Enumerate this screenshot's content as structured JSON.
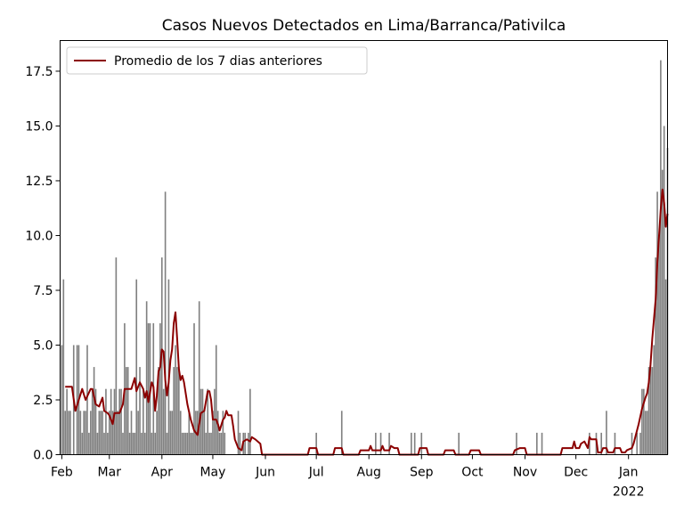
{
  "chart_data": {
    "type": "bar",
    "title": "Casos Nuevos Detectados en Lima/Barranca/Pativilca",
    "xlabel": "",
    "ylabel": "",
    "ylim": [
      0,
      18.9
    ],
    "yticks": [
      "0.0",
      "2.5",
      "5.0",
      "7.5",
      "10.0",
      "12.5",
      "15.0",
      "17.5"
    ],
    "xticks": [
      {
        "label": "Feb",
        "day": 0
      },
      {
        "label": "Mar",
        "day": 28
      },
      {
        "label": "Apr",
        "day": 59
      },
      {
        "label": "May",
        "day": 89
      },
      {
        "label": "Jun",
        "day": 120
      },
      {
        "label": "Jul",
        "day": 150
      },
      {
        "label": "Aug",
        "day": 181
      },
      {
        "label": "Sep",
        "day": 212
      },
      {
        "label": "Oct",
        "day": 242
      },
      {
        "label": "Nov",
        "day": 273
      },
      {
        "label": "Dec",
        "day": 303
      },
      {
        "label": "Jan",
        "day": 334
      }
    ],
    "year_label": "2022",
    "x_start": "2021-02-01",
    "x_range_days": [
      -1,
      357
    ],
    "bar_color": "#808080",
    "line_color": "#8b0000",
    "legend": {
      "placement": "top-left",
      "entries": [
        "Promedio de los 7 dias anteriores"
      ]
    },
    "series": [
      {
        "name": "Casos",
        "kind": "bar",
        "points": [
          [
            0,
            5
          ],
          [
            1,
            8
          ],
          [
            2,
            2
          ],
          [
            3,
            3
          ],
          [
            4,
            2
          ],
          [
            5,
            2
          ],
          [
            7,
            5
          ],
          [
            9,
            5
          ],
          [
            10,
            5
          ],
          [
            11,
            2
          ],
          [
            12,
            1
          ],
          [
            13,
            2
          ],
          [
            14,
            2
          ],
          [
            15,
            5
          ],
          [
            16,
            1
          ],
          [
            17,
            2
          ],
          [
            18,
            3
          ],
          [
            19,
            4
          ],
          [
            20,
            3
          ],
          [
            21,
            1
          ],
          [
            22,
            2
          ],
          [
            23,
            2
          ],
          [
            24,
            2
          ],
          [
            25,
            1
          ],
          [
            26,
            3
          ],
          [
            27,
            1
          ],
          [
            28,
            2
          ],
          [
            29,
            3
          ],
          [
            30,
            2
          ],
          [
            31,
            3
          ],
          [
            32,
            9
          ],
          [
            33,
            2
          ],
          [
            34,
            3
          ],
          [
            35,
            3
          ],
          [
            36,
            1
          ],
          [
            37,
            6
          ],
          [
            38,
            4
          ],
          [
            39,
            4
          ],
          [
            40,
            1
          ],
          [
            41,
            2
          ],
          [
            42,
            1
          ],
          [
            43,
            1
          ],
          [
            44,
            8
          ],
          [
            45,
            2
          ],
          [
            46,
            4
          ],
          [
            47,
            1
          ],
          [
            48,
            3
          ],
          [
            49,
            1
          ],
          [
            50,
            7
          ],
          [
            51,
            6
          ],
          [
            52,
            6
          ],
          [
            53,
            1
          ],
          [
            54,
            6
          ],
          [
            55,
            1
          ],
          [
            56,
            2
          ],
          [
            57,
            4
          ],
          [
            58,
            6
          ],
          [
            59,
            9
          ],
          [
            60,
            3
          ],
          [
            61,
            12
          ],
          [
            62,
            1
          ],
          [
            63,
            8
          ],
          [
            64,
            2
          ],
          [
            65,
            2
          ],
          [
            66,
            4
          ],
          [
            67,
            5
          ],
          [
            68,
            4
          ],
          [
            69,
            4
          ],
          [
            70,
            2
          ],
          [
            71,
            1
          ],
          [
            72,
            1
          ],
          [
            73,
            1
          ],
          [
            74,
            1
          ],
          [
            75,
            2
          ],
          [
            76,
            1
          ],
          [
            77,
            1
          ],
          [
            78,
            6
          ],
          [
            79,
            2
          ],
          [
            80,
            2
          ],
          [
            81,
            7
          ],
          [
            82,
            3
          ],
          [
            83,
            3
          ],
          [
            84,
            2
          ],
          [
            85,
            1
          ],
          [
            86,
            3
          ],
          [
            87,
            1
          ],
          [
            88,
            1
          ],
          [
            89,
            2
          ],
          [
            90,
            3
          ],
          [
            91,
            5
          ],
          [
            92,
            2
          ],
          [
            93,
            1
          ],
          [
            94,
            1
          ],
          [
            95,
            2
          ],
          [
            96,
            1
          ],
          [
            104,
            2
          ],
          [
            105,
            1
          ],
          [
            107,
            1
          ],
          [
            108,
            1
          ],
          [
            110,
            1
          ],
          [
            111,
            3
          ],
          [
            150,
            1
          ],
          [
            165,
            2
          ],
          [
            185,
            1
          ],
          [
            188,
            1
          ],
          [
            193,
            1
          ],
          [
            206,
            1
          ],
          [
            208,
            1
          ],
          [
            212,
            1
          ],
          [
            234,
            1
          ],
          [
            268,
            1
          ],
          [
            280,
            1
          ],
          [
            283,
            1
          ],
          [
            311,
            1
          ],
          [
            315,
            1
          ],
          [
            318,
            1
          ],
          [
            321,
            2
          ],
          [
            326,
            1
          ],
          [
            336,
            1
          ],
          [
            339,
            1
          ],
          [
            341,
            1
          ],
          [
            342,
            3
          ],
          [
            343,
            3
          ],
          [
            344,
            2
          ],
          [
            345,
            2
          ],
          [
            346,
            4
          ],
          [
            347,
            4
          ],
          [
            348,
            4
          ],
          [
            349,
            5
          ],
          [
            350,
            9
          ],
          [
            351,
            12
          ],
          [
            352,
            10
          ],
          [
            353,
            18
          ],
          [
            354,
            13
          ],
          [
            355,
            15
          ],
          [
            356,
            8
          ],
          [
            357,
            14
          ]
        ]
      },
      {
        "name": "Promedio de los 7 dias anteriores",
        "kind": "line",
        "points": [
          [
            2,
            3.1
          ],
          [
            6,
            3.1
          ],
          [
            8,
            2.0
          ],
          [
            12,
            3.0
          ],
          [
            14,
            2.5
          ],
          [
            17,
            3.0
          ],
          [
            18,
            3.0
          ],
          [
            20,
            2.3
          ],
          [
            22,
            2.2
          ],
          [
            24,
            2.6
          ],
          [
            25,
            2.0
          ],
          [
            27,
            1.9
          ],
          [
            28,
            1.8
          ],
          [
            30,
            1.4
          ],
          [
            31,
            1.9
          ],
          [
            34,
            1.9
          ],
          [
            36,
            2.3
          ],
          [
            37,
            3.0
          ],
          [
            41,
            3.0
          ],
          [
            43,
            3.5
          ],
          [
            44,
            2.9
          ],
          [
            46,
            3.3
          ],
          [
            48,
            3.0
          ],
          [
            49,
            2.6
          ],
          [
            50,
            2.9
          ],
          [
            51,
            2.4
          ],
          [
            53,
            3.3
          ],
          [
            54,
            3.1
          ],
          [
            55,
            2.0
          ],
          [
            56,
            2.7
          ],
          [
            57,
            3.8
          ],
          [
            58,
            4.0
          ],
          [
            59,
            4.8
          ],
          [
            60,
            4.7
          ],
          [
            61,
            3.4
          ],
          [
            62,
            2.7
          ],
          [
            63,
            3.3
          ],
          [
            64,
            4.3
          ],
          [
            65,
            4.8
          ],
          [
            66,
            6.0
          ],
          [
            67,
            6.5
          ],
          [
            68,
            5.3
          ],
          [
            69,
            3.9
          ],
          [
            70,
            3.4
          ],
          [
            71,
            3.6
          ],
          [
            72,
            3.3
          ],
          [
            74,
            2.3
          ],
          [
            76,
            1.6
          ],
          [
            78,
            1.1
          ],
          [
            80,
            0.9
          ],
          [
            82,
            1.9
          ],
          [
            84,
            2.0
          ],
          [
            86,
            2.9
          ],
          [
            87,
            2.9
          ],
          [
            88,
            2.5
          ],
          [
            89,
            1.6
          ],
          [
            91,
            1.6
          ],
          [
            92,
            1.4
          ],
          [
            93,
            1.1
          ],
          [
            95,
            1.6
          ],
          [
            96,
            1.7
          ],
          [
            97,
            2.0
          ],
          [
            98,
            1.8
          ],
          [
            100,
            1.8
          ],
          [
            101,
            1.3
          ],
          [
            102,
            0.7
          ],
          [
            104,
            0.3
          ],
          [
            106,
            0.2
          ],
          [
            107,
            0.6
          ],
          [
            109,
            0.7
          ],
          [
            111,
            0.6
          ],
          [
            112,
            0.8
          ],
          [
            114,
            0.7
          ],
          [
            117,
            0.5
          ],
          [
            118,
            0.0
          ],
          [
            145,
            0.0
          ],
          [
            146,
            0.3
          ],
          [
            150,
            0.3
          ],
          [
            151,
            0.0
          ],
          [
            160,
            0.0
          ],
          [
            161,
            0.3
          ],
          [
            165,
            0.3
          ],
          [
            166,
            0.0
          ],
          [
            175,
            0.0
          ],
          [
            176,
            0.2
          ],
          [
            181,
            0.2
          ],
          [
            182,
            0.4
          ],
          [
            183,
            0.2
          ],
          [
            188,
            0.2
          ],
          [
            189,
            0.4
          ],
          [
            190,
            0.2
          ],
          [
            193,
            0.2
          ],
          [
            194,
            0.4
          ],
          [
            196,
            0.3
          ],
          [
            198,
            0.3
          ],
          [
            199,
            0.0
          ],
          [
            210,
            0.0
          ],
          [
            211,
            0.3
          ],
          [
            215,
            0.3
          ],
          [
            216,
            0.0
          ],
          [
            225,
            0.0
          ],
          [
            226,
            0.2
          ],
          [
            231,
            0.2
          ],
          [
            232,
            0.0
          ],
          [
            240,
            0.0
          ],
          [
            241,
            0.2
          ],
          [
            246,
            0.2
          ],
          [
            247,
            0.0
          ],
          [
            266,
            0.0
          ],
          [
            267,
            0.2
          ],
          [
            270,
            0.3
          ],
          [
            273,
            0.3
          ],
          [
            274,
            0.0
          ],
          [
            294,
            0.0
          ],
          [
            295,
            0.3
          ],
          [
            301,
            0.3
          ],
          [
            302,
            0.6
          ],
          [
            303,
            0.3
          ],
          [
            305,
            0.3
          ],
          [
            306,
            0.5
          ],
          [
            308,
            0.6
          ],
          [
            310,
            0.3
          ],
          [
            311,
            0.8
          ],
          [
            312,
            0.7
          ],
          [
            315,
            0.7
          ],
          [
            316,
            0.1
          ],
          [
            318,
            0.1
          ],
          [
            319,
            0.3
          ],
          [
            321,
            0.3
          ],
          [
            322,
            0.1
          ],
          [
            325,
            0.1
          ],
          [
            326,
            0.3
          ],
          [
            329,
            0.3
          ],
          [
            330,
            0.1
          ],
          [
            332,
            0.1
          ],
          [
            333,
            0.2
          ],
          [
            336,
            0.3
          ],
          [
            337,
            0.5
          ],
          [
            338,
            0.8
          ],
          [
            340,
            1.4
          ],
          [
            342,
            2.1
          ],
          [
            344,
            2.6
          ],
          [
            345,
            2.8
          ],
          [
            346,
            3.3
          ],
          [
            347,
            4.1
          ],
          [
            348,
            5.3
          ],
          [
            349,
            6.2
          ],
          [
            350,
            7.1
          ],
          [
            351,
            8.8
          ],
          [
            352,
            10.0
          ],
          [
            353,
            11.2
          ],
          [
            354,
            12.1
          ],
          [
            355,
            11.5
          ],
          [
            356,
            10.4
          ],
          [
            357,
            11.0
          ]
        ]
      }
    ]
  }
}
